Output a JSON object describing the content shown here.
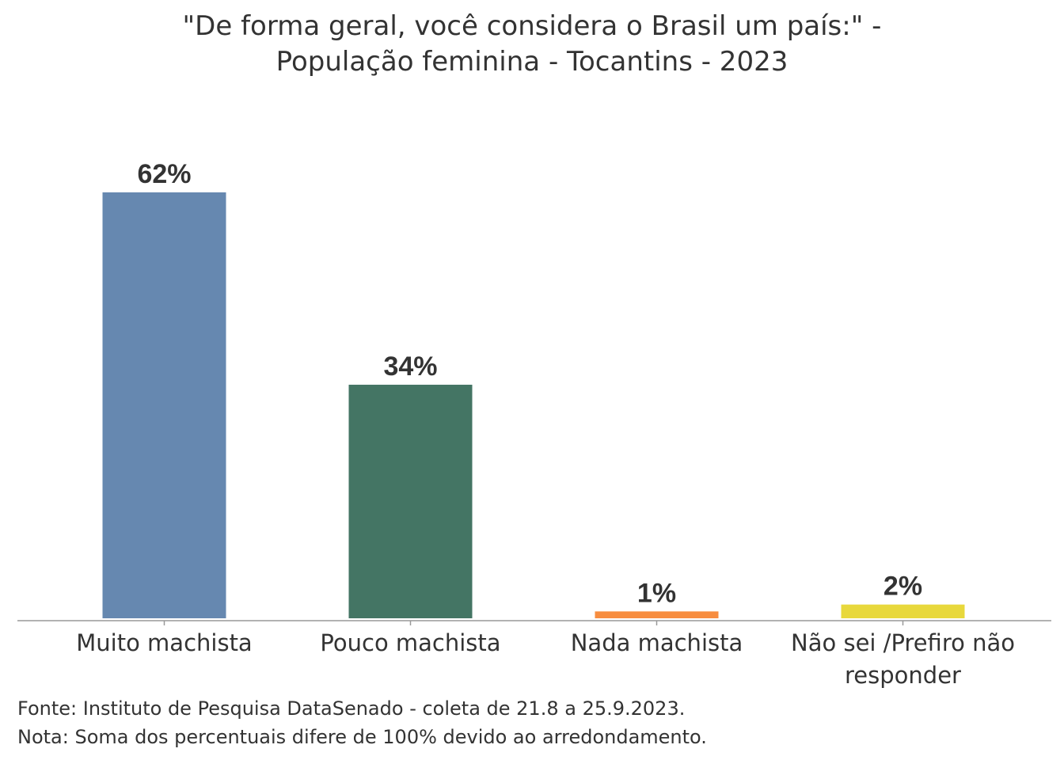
{
  "chart_data": {
    "type": "bar",
    "title": [
      "\"De forma geral, você considera o Brasil um país:\" -",
      "População feminina - Tocantins - 2023"
    ],
    "categories": [
      [
        "Muito machista"
      ],
      [
        "Pouco machista"
      ],
      [
        "Nada machista"
      ],
      [
        "Não sei /Prefiro não",
        "responder"
      ]
    ],
    "values": [
      62,
      34,
      1,
      2
    ],
    "value_labels": [
      "62%",
      "34%",
      "1%",
      "2%"
    ],
    "colors": [
      "#6688b0",
      "#447564",
      "#f78d3f",
      "#e8d83c"
    ],
    "ylim": [
      0,
      62
    ],
    "grid": false,
    "legend": "none"
  },
  "footnotes": {
    "source": "Fonte: Instituto de Pesquisa DataSenado - coleta de 21.8 a 25.9.2023.",
    "note": "Nota: Soma dos percentuais difere de 100% devido ao arredondamento."
  }
}
